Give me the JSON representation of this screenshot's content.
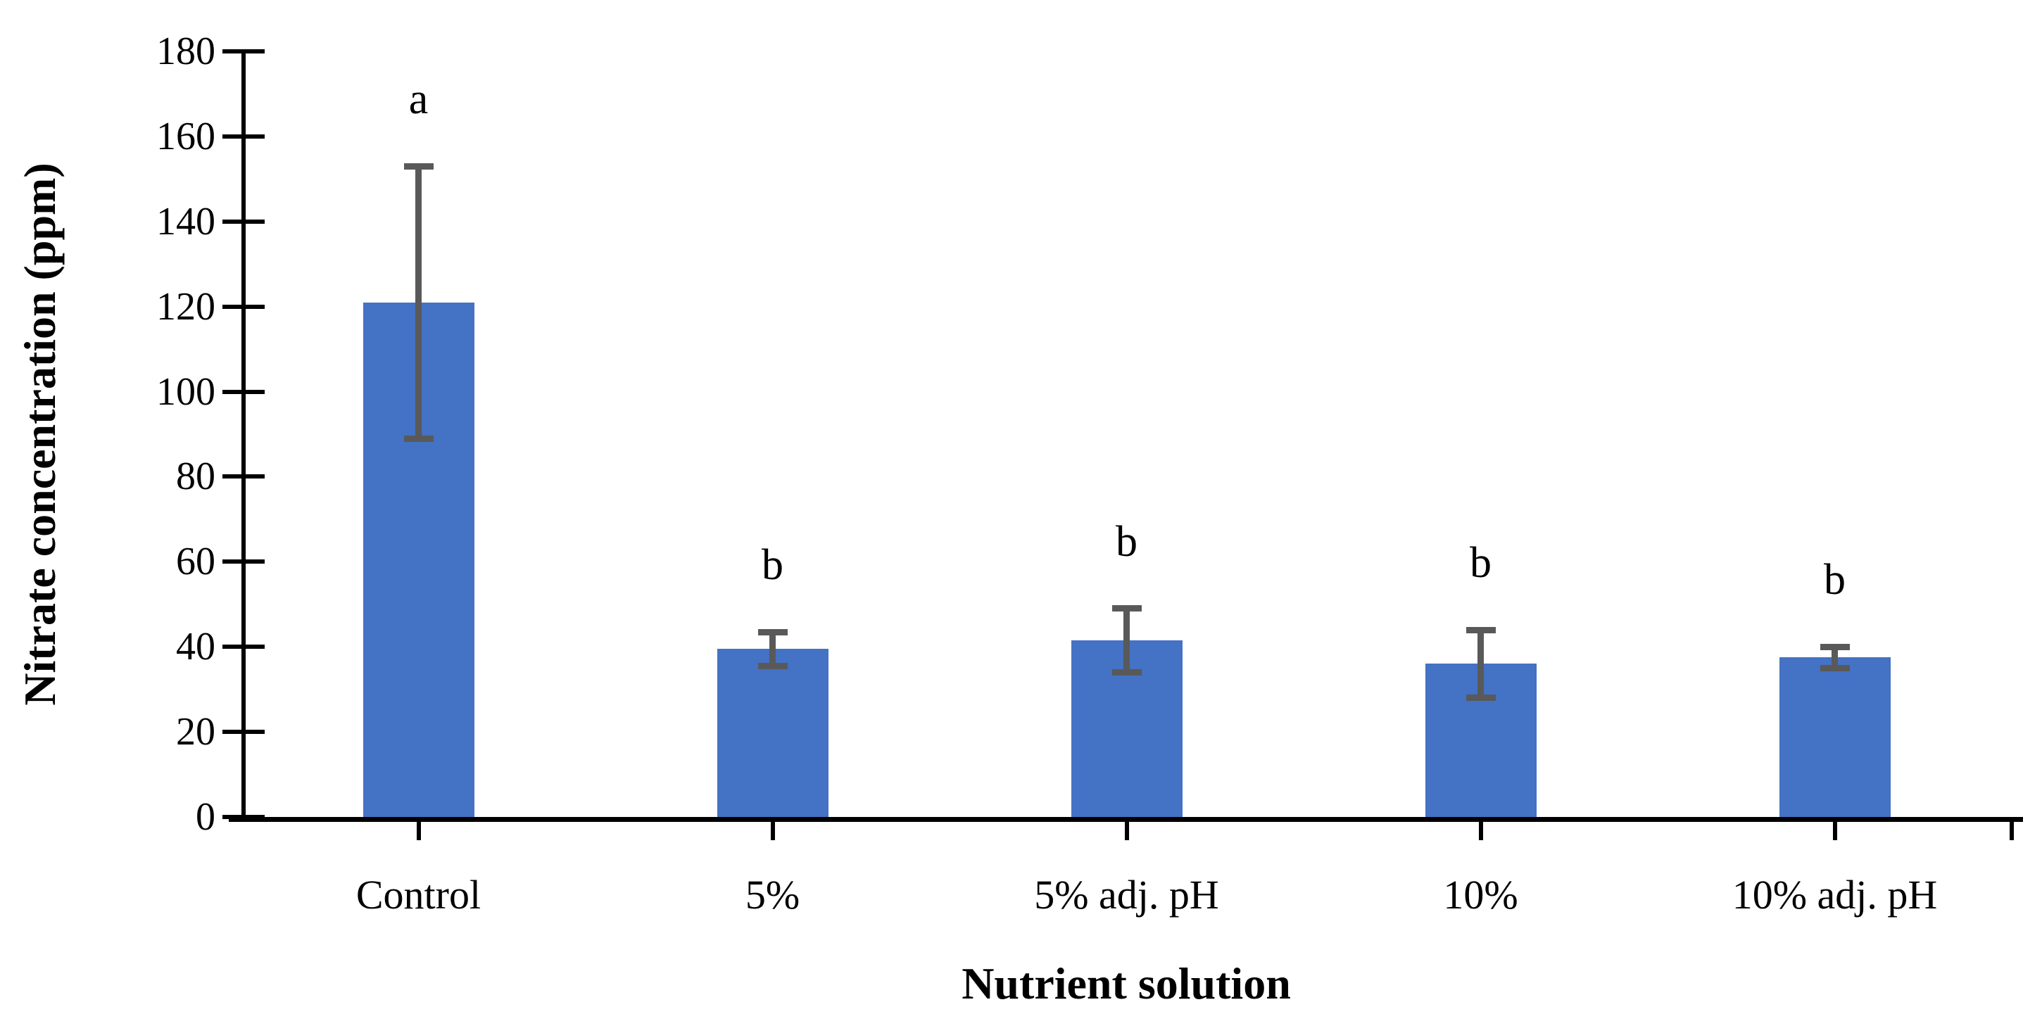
{
  "chart_data": {
    "type": "bar",
    "title": "",
    "xlabel": "Nutrient solution",
    "ylabel": "Nitrate concentration (ppm)",
    "categories": [
      "Control",
      "5%",
      "5% adj. pH",
      "10%",
      "10% adj. pH"
    ],
    "series": [
      {
        "name": "Nitrate concentration",
        "values": [
          121,
          39.5,
          41.5,
          36,
          37.5
        ],
        "error_bars": [
          32,
          4,
          7.5,
          8,
          2.5
        ]
      }
    ],
    "significance_letters": [
      "a",
      "b",
      "b",
      "b",
      "b"
    ],
    "ylim": [
      0,
      180
    ],
    "ytick_step": 20,
    "ytick_labels": [
      "0",
      "20",
      "40",
      "60",
      "80",
      "100",
      "120",
      "140",
      "160",
      "180"
    ],
    "grid": false,
    "legend": false,
    "background_color": "#FFFFFF",
    "bar_color": "#4472C4",
    "error_bar_color": "#595959",
    "axis_color": "#000000",
    "text_color": "#000000"
  }
}
